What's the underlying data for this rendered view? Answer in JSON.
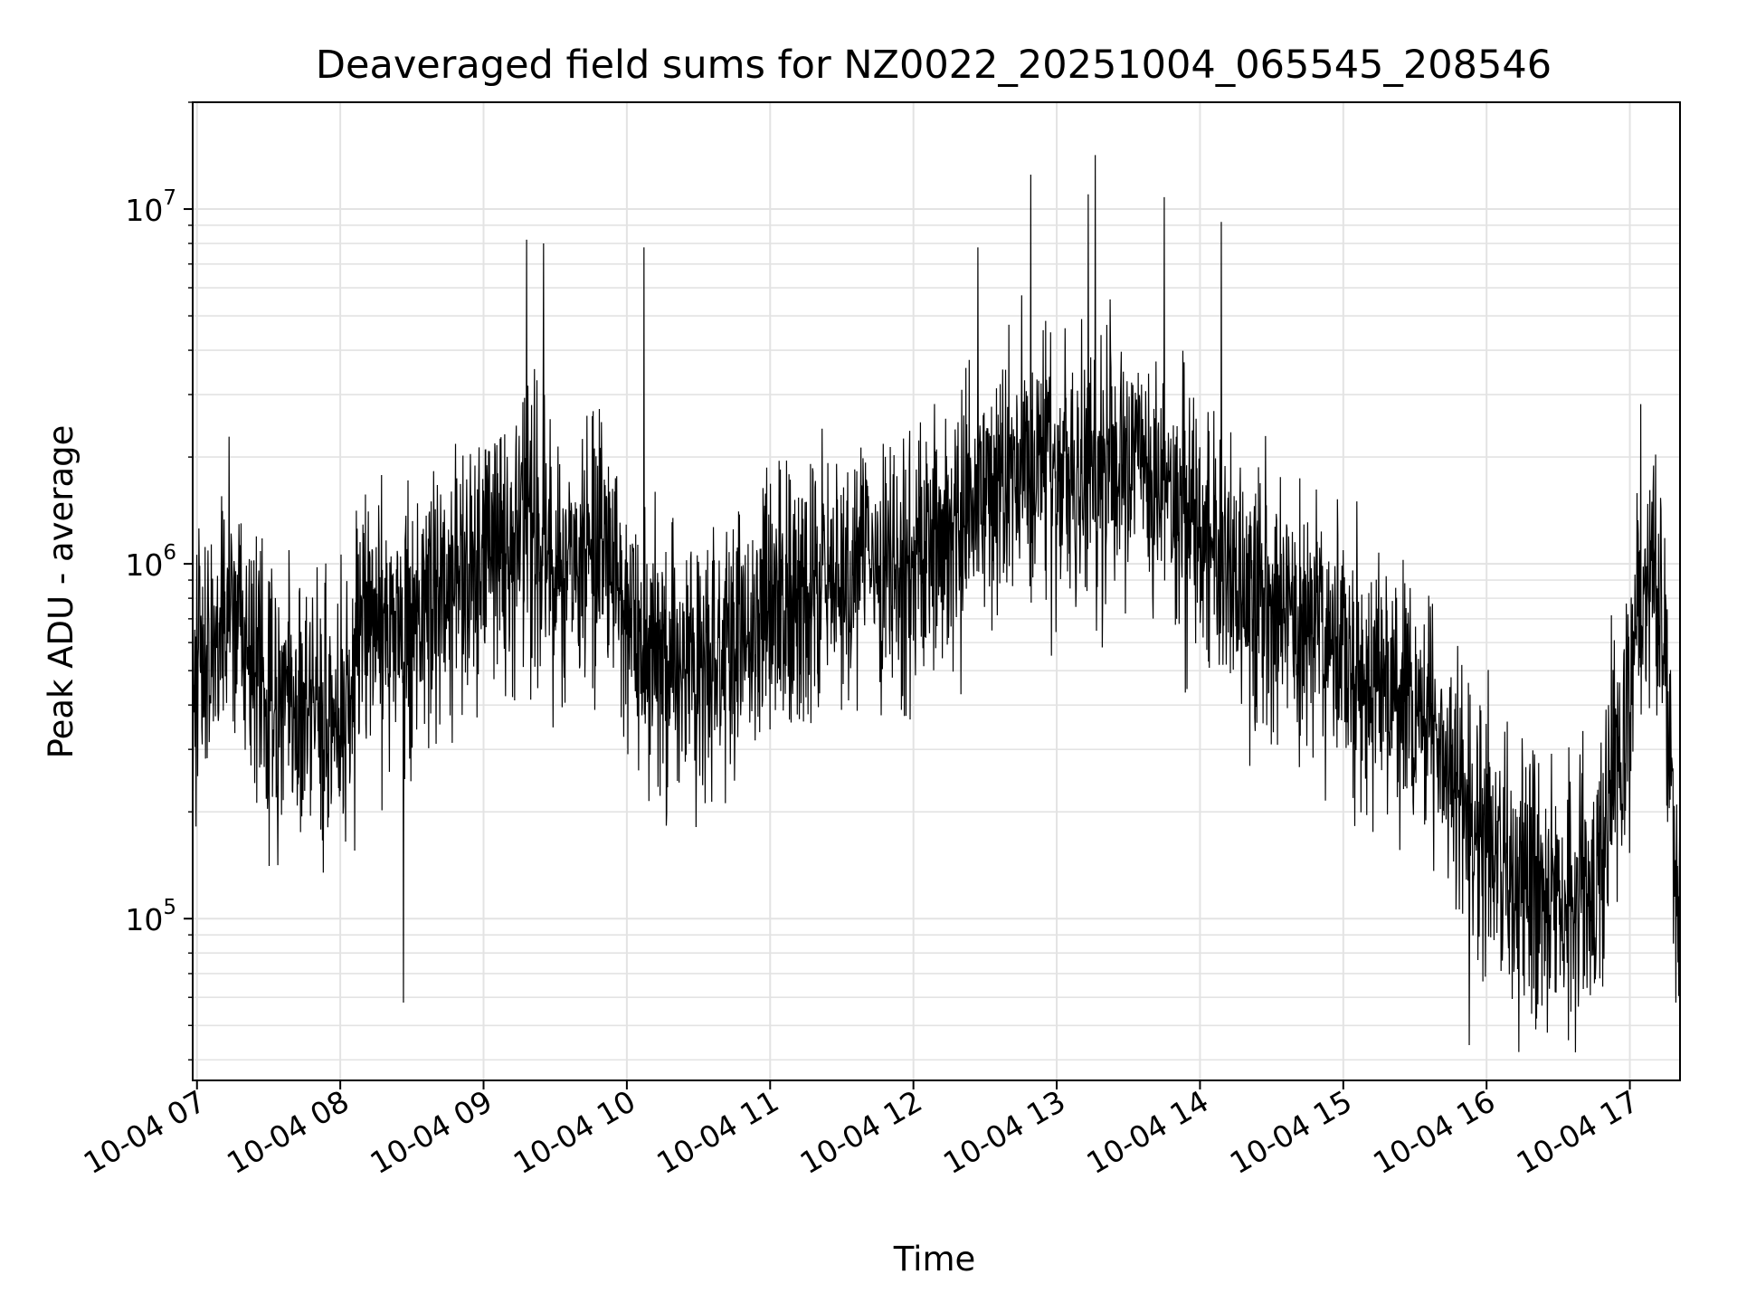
{
  "chart_data": {
    "type": "line",
    "title": "Deaveraged field sums for NZ0022_20251004_065545_208546",
    "xlabel": "Time",
    "ylabel": "Peak ADU - average",
    "yscale": "log",
    "ylim": [
      35000,
      20000000
    ],
    "xlim": [
      6.97,
      17.35
    ],
    "grid": true,
    "x_tick_values": [
      7,
      8,
      9,
      10,
      11,
      12,
      13,
      14,
      15,
      16,
      17
    ],
    "x_tick_labels": [
      "10-04 07",
      "10-04 08",
      "10-04 09",
      "10-04 10",
      "10-04 11",
      "10-04 12",
      "10-04 13",
      "10-04 14",
      "10-04 15",
      "10-04 16",
      "10-04 17"
    ],
    "y_tick_values": [
      100000,
      1000000,
      10000000
    ],
    "y_tick_labels": [
      {
        "base": "10",
        "exp": "5"
      },
      {
        "base": "10",
        "exp": "6"
      },
      {
        "base": "10",
        "exp": "7"
      }
    ],
    "series": [
      {
        "name": "Peak ADU - average",
        "color": "#000000",
        "sample_count": 3600,
        "envelope": {
          "x": [
            6.97,
            7.0,
            7.25,
            7.5,
            7.75,
            8.0,
            8.25,
            8.5,
            8.75,
            9.0,
            9.25,
            9.5,
            9.75,
            10.0,
            10.25,
            10.5,
            10.75,
            11.0,
            11.25,
            11.5,
            11.75,
            12.0,
            12.25,
            12.5,
            12.75,
            13.0,
            13.25,
            13.5,
            13.75,
            14.0,
            14.25,
            14.5,
            14.75,
            15.0,
            15.25,
            15.5,
            15.75,
            16.0,
            16.25,
            16.5,
            16.75,
            16.9,
            17.0,
            17.1,
            17.2,
            17.3,
            17.35
          ],
          "median": [
            300000,
            550000,
            750000,
            420000,
            400000,
            380000,
            750000,
            650000,
            950000,
            1000000,
            1200000,
            900000,
            1100000,
            850000,
            500000,
            450000,
            650000,
            800000,
            850000,
            950000,
            1000000,
            1000000,
            1300000,
            1600000,
            1800000,
            1700000,
            1800000,
            1900000,
            1700000,
            1300000,
            900000,
            800000,
            700000,
            550000,
            450000,
            400000,
            300000,
            150000,
            120000,
            110000,
            110000,
            300000,
            450000,
            900000,
            1000000,
            200000,
            90000
          ]
        },
        "notable_points": [
          {
            "x": 9.3,
            "y": 8200000
          },
          {
            "x": 9.42,
            "y": 8000000
          },
          {
            "x": 10.12,
            "y": 7800000
          },
          {
            "x": 12.45,
            "y": 7800000
          },
          {
            "x": 12.82,
            "y": 12500000
          },
          {
            "x": 13.27,
            "y": 14200000
          },
          {
            "x": 13.22,
            "y": 11000000
          },
          {
            "x": 13.75,
            "y": 10800000
          },
          {
            "x": 14.15,
            "y": 9200000
          },
          {
            "x": 8.44,
            "y": 58000
          },
          {
            "x": 15.88,
            "y": 44000
          },
          {
            "x": 16.62,
            "y": 42000
          },
          {
            "x": 17.32,
            "y": 58000
          }
        ]
      }
    ]
  }
}
